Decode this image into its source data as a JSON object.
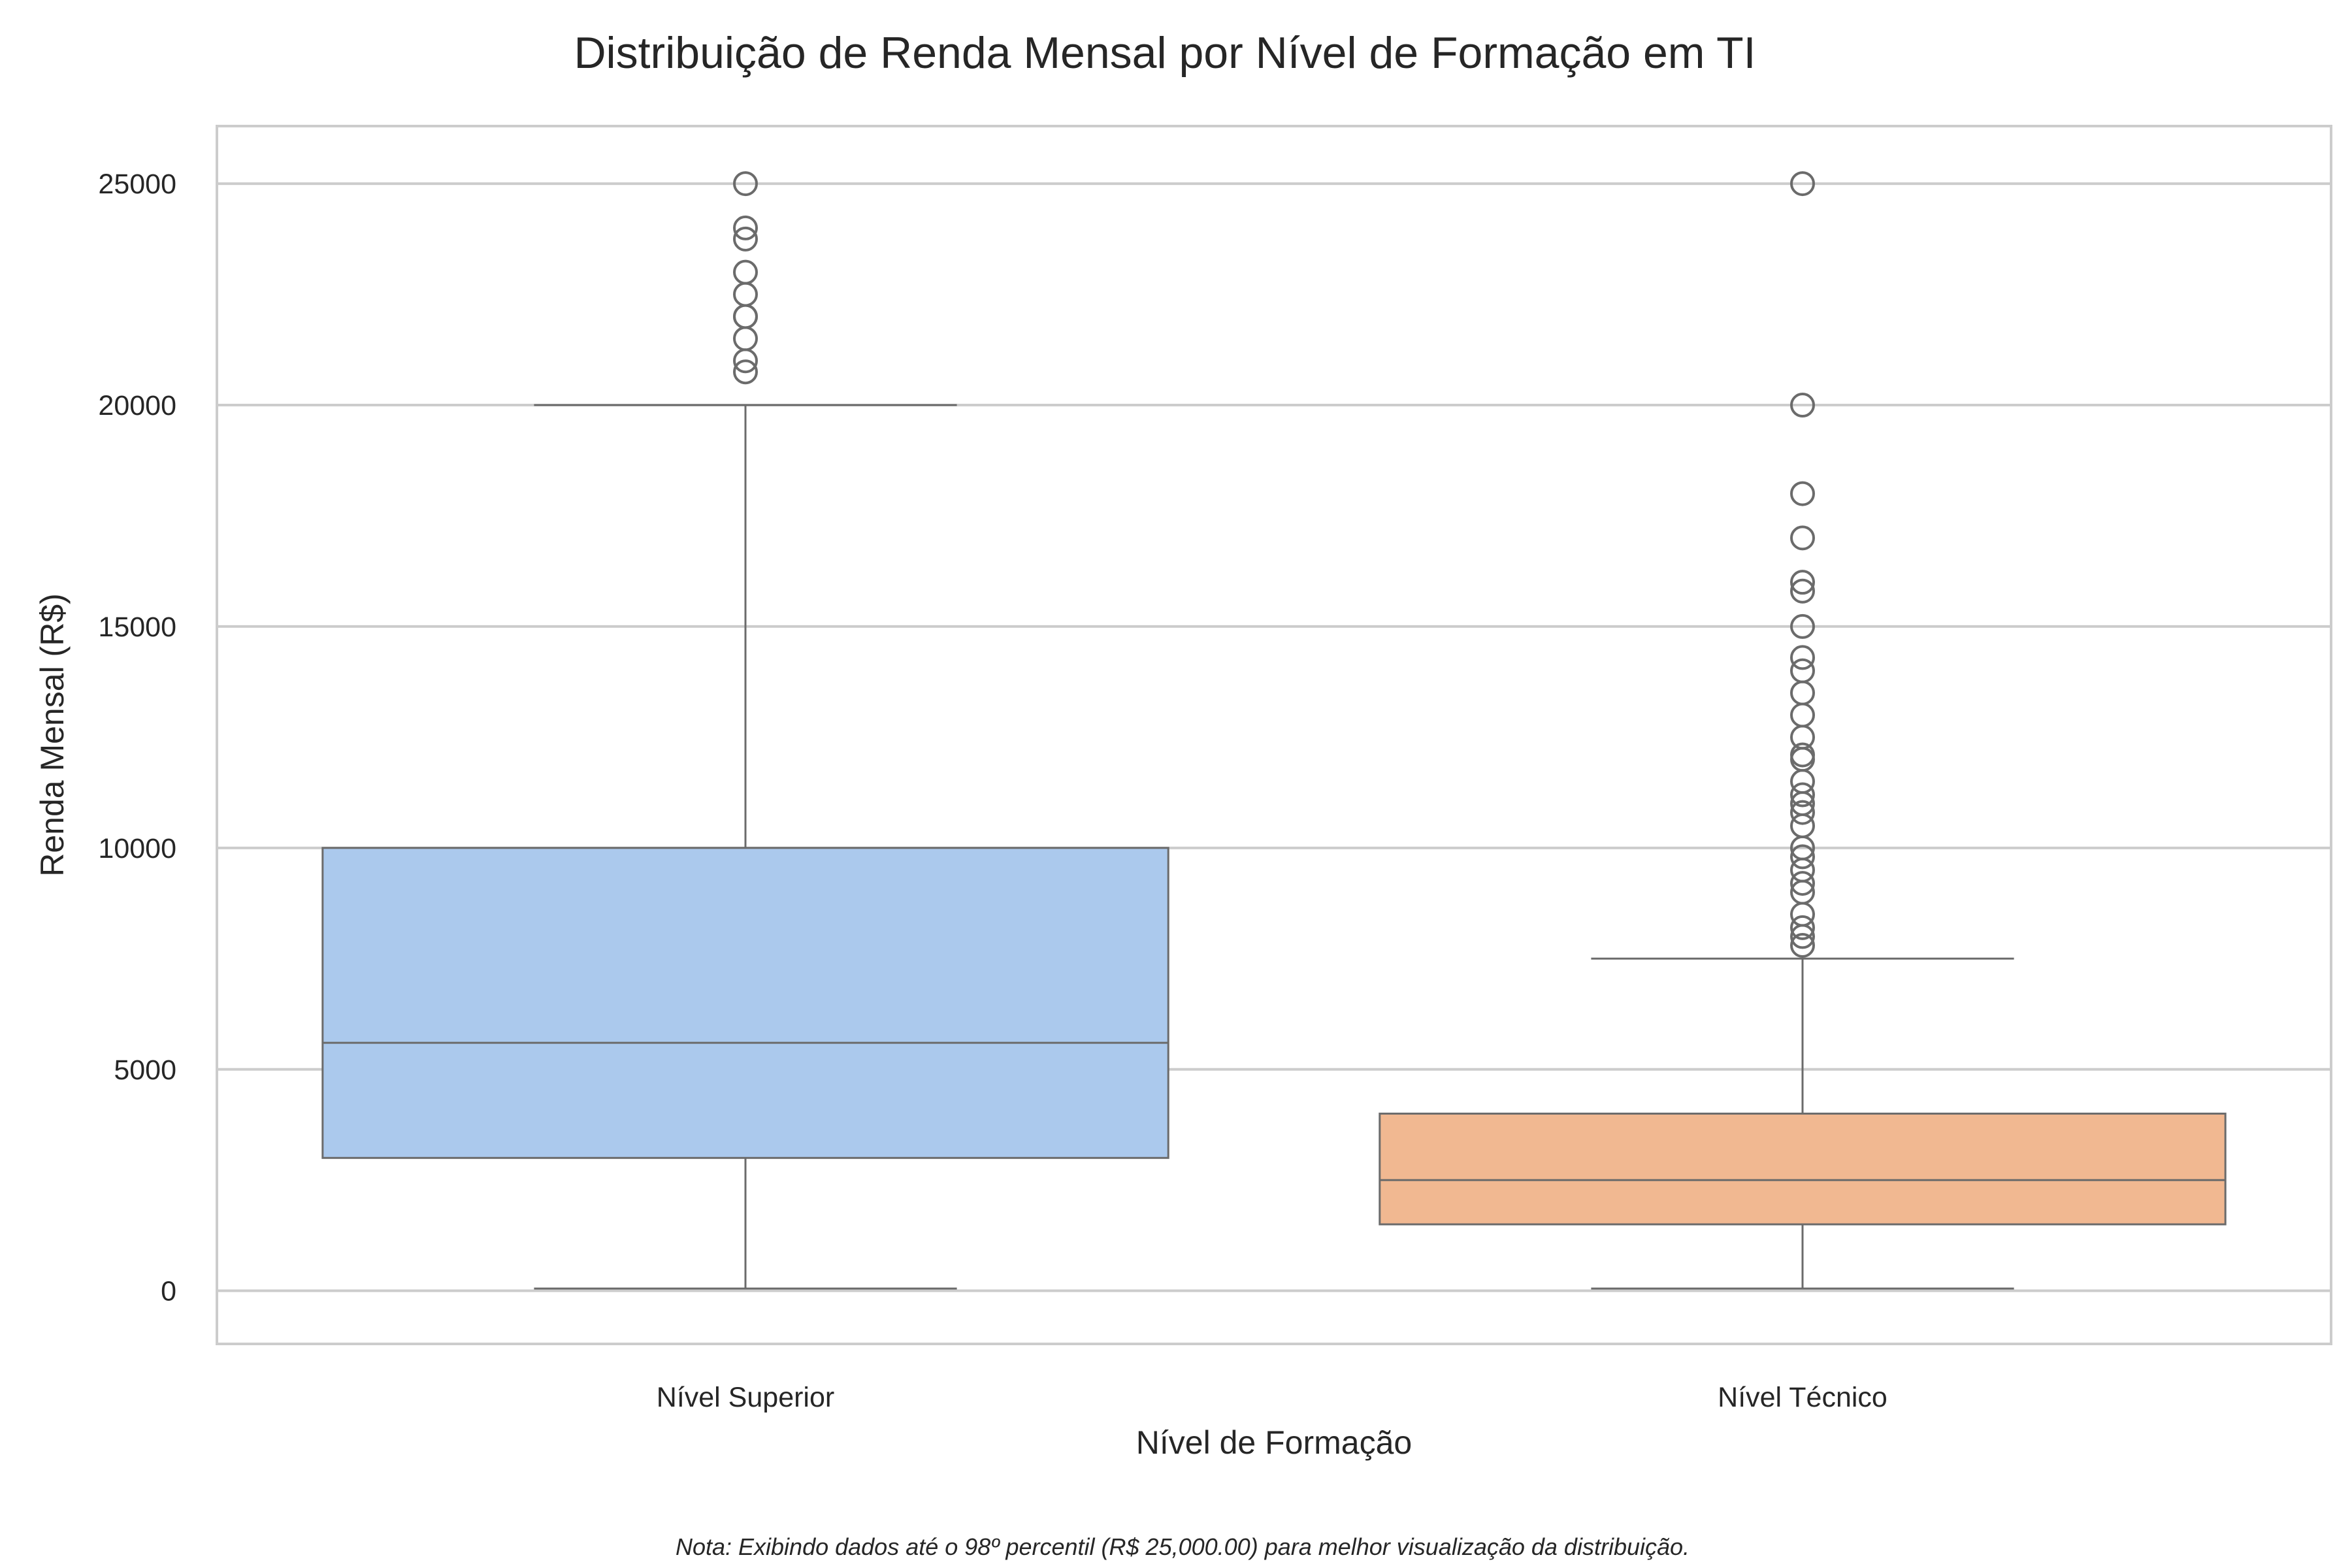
{
  "chart_data": {
    "type": "box",
    "title": "Distribuição de Renda Mensal por Nível de Formação em TI",
    "xlabel": "Nível de Formação",
    "ylabel": "Renda Mensal (R$)",
    "ylim": [
      -1200,
      26300
    ],
    "yticks": [
      "0",
      "5000",
      "10000",
      "15000",
      "20000",
      "25000"
    ],
    "ytick_values": [
      0,
      5000,
      10000,
      15000,
      20000,
      25000
    ],
    "grid": "horizontal",
    "categories": [
      "Nível Superior",
      "Nível Técnico"
    ],
    "colors": {
      "Nível Superior": "#abc9ed",
      "Nível Técnico": "#f1b891",
      "line": "#6b6b6b",
      "grid": "#cccccc"
    },
    "boxes": [
      {
        "category": "Nível Superior",
        "whisker_low": 50,
        "q1": 3000,
        "median": 5600,
        "q3": 10000,
        "whisker_high": 20000,
        "outliers": [
          20750,
          21000,
          21500,
          22000,
          22000,
          22500,
          23000,
          23750,
          24000,
          25000
        ]
      },
      {
        "category": "Nível Técnico",
        "whisker_low": 50,
        "q1": 1500,
        "median": 2500,
        "q3": 4000,
        "whisker_high": 7500,
        "outliers": [
          7800,
          8000,
          8200,
          8500,
          9000,
          9200,
          9500,
          9800,
          10000,
          10500,
          10800,
          11000,
          11200,
          11500,
          12000,
          12100,
          12500,
          13000,
          13500,
          14000,
          14300,
          15000,
          15800,
          16000,
          17000,
          18000,
          20000,
          25000
        ]
      }
    ],
    "note": "Nota: Exibindo dados até o 98º percentil (R$ 25,000.00) para melhor visualização da distribuição."
  }
}
